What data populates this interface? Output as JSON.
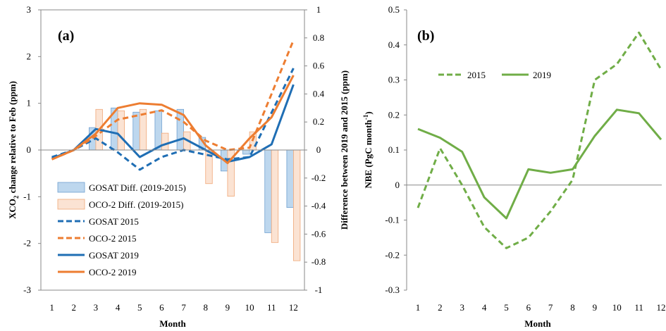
{
  "chart_data": [
    {
      "type": "bar",
      "panel_label": "(a)",
      "xlabel": "Month",
      "ylabel_left": "XCO₂ change relative to Feb (ppm)",
      "ylabel_left_main": "XCO",
      "ylabel_left_sub": "2",
      "ylabel_left_rest": " change relative to Feb (ppm)",
      "ylabel_right": "Difference between 2019 and 2015 (ppm)",
      "categories": [
        "1",
        "2",
        "3",
        "4",
        "5",
        "6",
        "7",
        "8",
        "9",
        "10",
        "11",
        "12"
      ],
      "ylim_left": [
        -3,
        3
      ],
      "ylim_right": [
        -1,
        1
      ],
      "yticks_left": [
        "-3",
        "-2",
        "-1",
        "0",
        "1",
        "2",
        "3"
      ],
      "yticks_right": [
        "-1",
        "-0.8",
        "-0.6",
        "-0.4",
        "-0.2",
        "0",
        "0.2",
        "0.4",
        "0.6",
        "0.8",
        "1"
      ],
      "legend_position": "bottom-left",
      "grid": false,
      "bars": [
        {
          "name": "GOSAT Diff. (2019-2015)",
          "axis": "right",
          "color": "#bdd7ee",
          "edge": "#6fa0d0",
          "values": [
            0.0,
            0.0,
            0.16,
            0.3,
            0.27,
            0.28,
            0.29,
            0.09,
            -0.15,
            -0.03,
            -0.59,
            -0.41
          ]
        },
        {
          "name": "OCO-2 Diff. (2019-2015)",
          "axis": "right",
          "color": "#fbe3d3",
          "edge": "#f0a878",
          "values": [
            0.0,
            0.0,
            0.29,
            0.28,
            0.29,
            0.12,
            0.13,
            -0.24,
            -0.33,
            0.13,
            -0.66,
            -0.79
          ]
        }
      ],
      "lines": [
        {
          "name": "GOSAT 2015",
          "axis": "left",
          "color": "#1f6eb4",
          "dash": true,
          "values": [
            -0.15,
            0.0,
            0.25,
            -0.05,
            -0.42,
            -0.15,
            0.0,
            -0.1,
            -0.2,
            -0.15,
            0.8,
            1.75
          ]
        },
        {
          "name": "OCO-2 2015",
          "axis": "left",
          "color": "#ed7d31",
          "dash": true,
          "values": [
            -0.2,
            0.0,
            0.3,
            0.65,
            0.75,
            0.85,
            0.6,
            0.2,
            0.0,
            0.05,
            1.2,
            2.35
          ]
        },
        {
          "name": "GOSAT 2019",
          "axis": "left",
          "color": "#1f6eb4",
          "dash": false,
          "values": [
            -0.18,
            0.0,
            0.45,
            0.35,
            -0.15,
            0.1,
            0.25,
            0.0,
            -0.25,
            -0.15,
            0.12,
            1.4
          ]
        },
        {
          "name": "OCO-2 2019",
          "axis": "left",
          "color": "#ed7d31",
          "dash": false,
          "values": [
            -0.2,
            0.0,
            0.35,
            0.9,
            1.0,
            0.97,
            0.75,
            0.1,
            -0.28,
            0.25,
            0.7,
            1.6
          ]
        }
      ]
    },
    {
      "type": "line",
      "panel_label": "(b)",
      "xlabel": "Month",
      "ylabel_main": "NBE (PgC month",
      "ylabel_sup": "-1",
      "ylabel_end": ")",
      "ylabel": "NBE (PgC month⁻¹)",
      "categories": [
        "1",
        "2",
        "3",
        "4",
        "5",
        "6",
        "7",
        "8",
        "9",
        "10",
        "11",
        "12"
      ],
      "ylim": [
        -0.3,
        0.5
      ],
      "yticks": [
        "-0.3",
        "-0.2",
        "-0.1",
        "0",
        "0.1",
        "0.2",
        "0.3",
        "0.4",
        "0.5"
      ],
      "legend_position": "top-left",
      "grid": false,
      "series": [
        {
          "name": "2015",
          "color": "#70ad47",
          "dash": true,
          "values": [
            -0.065,
            0.105,
            0.0,
            -0.12,
            -0.18,
            -0.15,
            -0.075,
            0.015,
            0.3,
            0.345,
            0.435,
            0.33
          ]
        },
        {
          "name": "2019",
          "color": "#70ad47",
          "dash": false,
          "values": [
            0.16,
            0.135,
            0.095,
            -0.035,
            -0.095,
            0.045,
            0.035,
            0.045,
            0.14,
            0.215,
            0.205,
            0.13
          ]
        }
      ]
    }
  ]
}
